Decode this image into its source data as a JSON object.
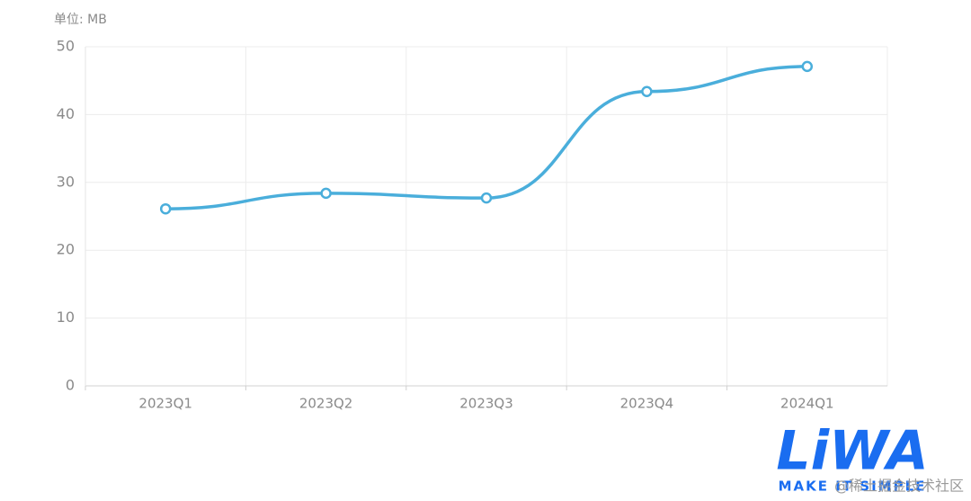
{
  "chart_data": {
    "type": "line",
    "y_label": "单位: MB",
    "categories": [
      "2023Q1",
      "2023Q2",
      "2023Q3",
      "2023Q4",
      "2024Q1"
    ],
    "series": [
      {
        "color": "#4aaedb",
        "values": [
          26.1,
          28.4,
          27.7,
          43.4,
          47.1
        ]
      }
    ],
    "ylim": [
      0,
      50
    ],
    "yticks": [
      0,
      10,
      20,
      30,
      40,
      50
    ],
    "grid": true,
    "smooth": true
  },
  "logo": {
    "name": "LiWA",
    "slogan": "MAKE IT SIMPLE"
  },
  "watermark": "@稀土掘金技术社区"
}
